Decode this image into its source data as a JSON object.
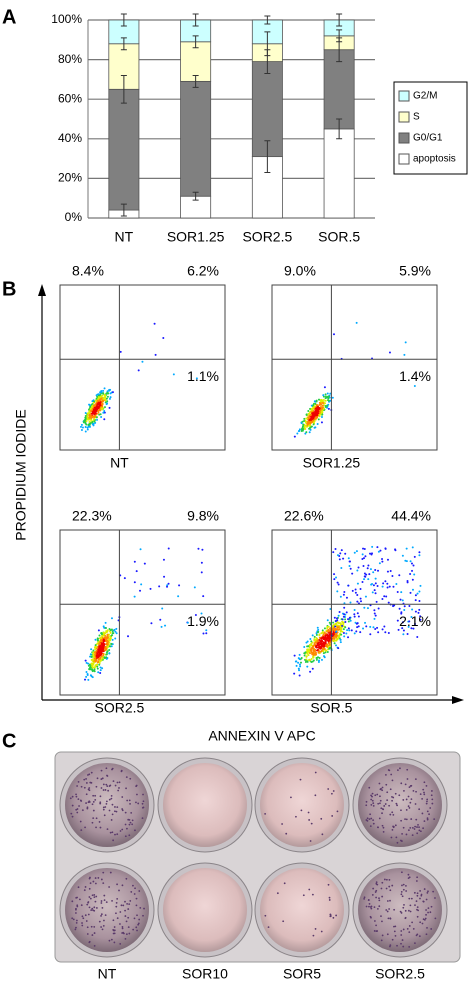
{
  "panels": {
    "a": "A",
    "b": "B",
    "c": "C"
  },
  "chart_data": {
    "type": "bar",
    "stacked": true,
    "categories": [
      "NT",
      "SOR1.25",
      "SOR2.5",
      "SOR.5"
    ],
    "series": [
      {
        "name": "apoptosis",
        "color": "#ffffff",
        "values": [
          4,
          11,
          31,
          45
        ],
        "errors": [
          3,
          2,
          8,
          5
        ]
      },
      {
        "name": "G0/G1",
        "color": "#808080",
        "values": [
          61,
          58,
          48,
          40
        ],
        "errors": [
          7,
          3,
          6,
          6
        ]
      },
      {
        "name": "S",
        "color": "#ffffcc",
        "values": [
          23,
          20,
          9,
          7
        ],
        "errors": [
          3,
          3,
          6,
          3
        ]
      },
      {
        "name": "G2/M",
        "color": "#ccffff",
        "values": [
          12,
          11,
          12,
          8
        ],
        "errors": [
          3,
          3,
          2,
          3
        ]
      }
    ],
    "ylim": [
      0,
      100
    ],
    "yticks": [
      {
        "value": 0,
        "label": "0%"
      },
      {
        "value": 20,
        "label": "20%"
      },
      {
        "value": 40,
        "label": "40%"
      },
      {
        "value": 60,
        "label": "60%"
      },
      {
        "value": 80,
        "label": "80%"
      },
      {
        "value": 100,
        "label": "100%"
      }
    ],
    "grid": true,
    "legend": "right"
  },
  "flow": {
    "y_label": "PROPIDIUM IODIDE",
    "x_label": "ANNEXIN V APC",
    "plots": [
      {
        "name": "NT",
        "upper_left": "8.4%",
        "upper_right": "6.2%",
        "lower_right": "1.1%"
      },
      {
        "name": "SOR1.25",
        "upper_left": "9.0%",
        "upper_right": "5.9%",
        "lower_right": "1.4%"
      },
      {
        "name": "SOR2.5",
        "upper_left": "22.3%",
        "upper_right": "9.8%",
        "lower_right": "1.9%"
      },
      {
        "name": "SOR.5",
        "upper_left": "22.6%",
        "upper_right": "44.4%",
        "lower_right": "2.1%"
      }
    ]
  },
  "plate": {
    "labels": [
      "NT",
      "SOR10",
      "SOR5",
      "SOR2.5"
    ]
  }
}
